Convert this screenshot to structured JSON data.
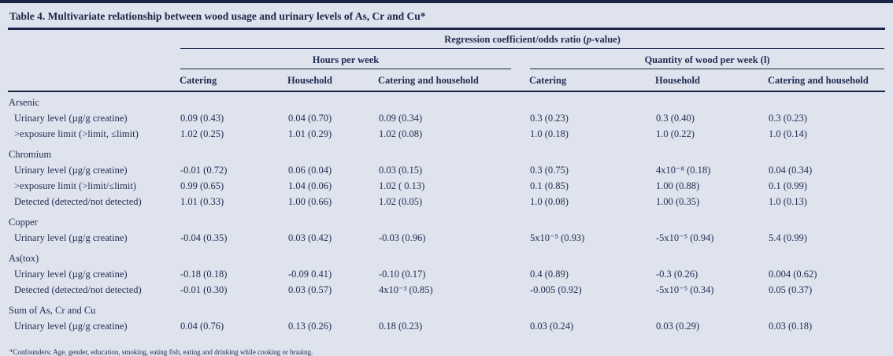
{
  "table": {
    "title": "Table 4. Multivariate relationship between wood usage and urinary levels of As, Cr and Cu*",
    "spanner": {
      "pre": "Regression coefficient/odds ratio (",
      "p": "p",
      "post": "-value)"
    },
    "groups": [
      {
        "label": "Hours per week",
        "columns": [
          "Catering",
          "Household",
          "Catering and household"
        ]
      },
      {
        "label": "Quantity of wood per week (l)",
        "columns": [
          "Catering",
          "Household",
          "Catering and household"
        ]
      }
    ],
    "sections": [
      {
        "name": "Arsenic",
        "rows": [
          {
            "label": "Urinary level (µg/g creatine)",
            "values": [
              "0.09 (0.43)",
              "0.04 (0.70)",
              "0.09 (0.34)",
              "0.3 (0.23)",
              "0.3 (0.40)",
              "0.3 (0.23)"
            ]
          },
          {
            "label": ">exposure limit (>limit, ≤limit)",
            "values": [
              "1.02 (0.25)",
              "1.01 (0.29)",
              "1.02 (0.08)",
              "1.0 (0.18)",
              "1.0 (0.22)",
              "1.0 (0.14)"
            ]
          }
        ]
      },
      {
        "name": "Chromium",
        "rows": [
          {
            "label": "Urinary level (µg/g creatine)",
            "values": [
              "-0.01 (0.72)",
              "0.06 (0.04)",
              "0.03 (0.15)",
              "0.3 (0.75)",
              "4x10⁻⁸ (0.18)",
              "0.04 (0.34)"
            ]
          },
          {
            "label": ">exposure limit (>limit/≤limit)",
            "values": [
              "0.99 (0.65)",
              "1.04 (0.06)",
              "1.02 ( 0.13)",
              "0.1 (0.85)",
              "1.00 (0.88)",
              "0.1 (0.99)"
            ]
          },
          {
            "label": "Detected (detected/not detected)",
            "values": [
              "1.01 (0.33)",
              "1.00 (0.66)",
              "1.02 (0.05)",
              "1.0 (0.08)",
              "1.00 (0.35)",
              "1.0 (0.13)"
            ]
          }
        ]
      },
      {
        "name": "Copper",
        "rows": [
          {
            "label": "Urinary level (µg/g creatine)",
            "values": [
              "-0.04 (0.35)",
              "0.03 (0.42)",
              "-0.03 (0.96)",
              "5x10⁻⁵ (0.93)",
              "-5x10⁻⁵ (0.94)",
              "5.4 (0.99)"
            ]
          }
        ]
      },
      {
        "name": "As(tox)",
        "rows": [
          {
            "label": "Urinary level (µg/g creatine)",
            "values": [
              "-0.18 (0.18)",
              "-0.09 0.41)",
              "-0.10 (0.17)",
              "0.4 (0.89)",
              "-0.3 (0.26)",
              "0.004 (0.62)"
            ]
          },
          {
            "label": "Detected (detected/not detected)",
            "values": [
              "-0.01 (0.30)",
              "0.03 (0.57)",
              "4x10⁻³ (0.85)",
              "-0.005 (0.92)",
              "-5x10⁻⁵ (0.34)",
              "0.05 (0.37)"
            ]
          }
        ]
      },
      {
        "name": "Sum of As, Cr and Cu",
        "rows": [
          {
            "label": "Urinary level (µg/g creatine)",
            "values": [
              "0.04 (0.76)",
              "0.13 (0.26)",
              "0.18 (0.23)",
              "0.03 (0.24)",
              "0.03 (0.29)",
              "0.03 (0.18)"
            ]
          }
        ]
      }
    ],
    "footnote": "*Confounders: Age, gender, education, smoking, eating fish, eating and drinking while cooking or braaing.",
    "colors": {
      "background": "#dfe3ee",
      "text": "#232d52",
      "rule": "#1c2547"
    }
  }
}
